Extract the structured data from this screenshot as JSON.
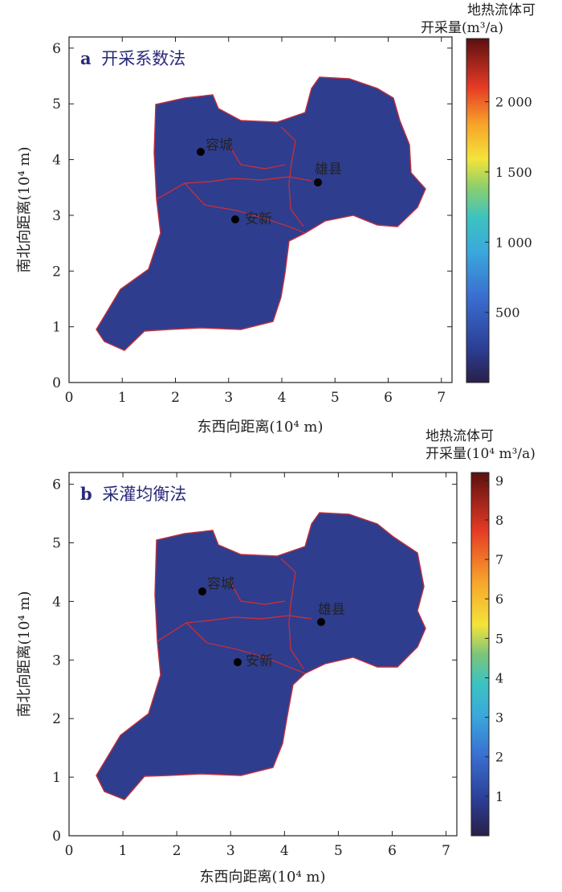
{
  "panels": [
    {
      "id": "a",
      "title_letter": "a",
      "title_text": "开采系数法",
      "colorbar_title_line1": "地热流体可",
      "colorbar_title_line2": "开采量(m³/a)",
      "colorbar_ticks": [
        "500",
        "1 000",
        "1 500",
        "2 000"
      ],
      "xlabel": "东西向距离(10⁴ m)",
      "ylabel": "南北向距离(10⁴ m)"
    },
    {
      "id": "b",
      "title_letter": "b",
      "title_text": "采灌均衡法",
      "colorbar_title_line1": "地热流体可",
      "colorbar_title_line2": "开采量(10⁴ m³/a)",
      "colorbar_ticks": [
        "1",
        "2",
        "3",
        "4",
        "5",
        "6",
        "7",
        "8",
        "9"
      ],
      "xlabel": "东西向距离(10⁴ m)",
      "ylabel": "南北向距离(10⁴ m)"
    }
  ],
  "cities": [
    {
      "name": "容城",
      "x": 2.45,
      "y": 4.1
    },
    {
      "name": "雄县",
      "x": 4.6,
      "y": 3.55
    },
    {
      "name": "安新",
      "x": 3.05,
      "y": 2.9
    }
  ],
  "chart_data": [
    {
      "type": "heatmap",
      "title": "开采系数法",
      "xlabel": "东西向距离(10⁴ m)",
      "ylabel": "南北向距离(10⁴ m)",
      "x_ticks": [
        0,
        1,
        2,
        3,
        4,
        5,
        6,
        7
      ],
      "y_ticks": [
        0,
        1,
        2,
        3,
        4,
        5,
        6
      ],
      "xlim": [
        0,
        7.2
      ],
      "ylim": [
        0,
        6.2
      ],
      "colorbar_label": "地热流体可开采量(m³/a)",
      "colorbar_ticks": [
        500,
        1000,
        1500,
        2000
      ],
      "colorbar_range": [
        0,
        2450
      ],
      "points": [
        {
          "name": "容城",
          "x": 2.45,
          "y": 4.1
        },
        {
          "name": "雄县",
          "x": 4.6,
          "y": 3.55
        },
        {
          "name": "安新",
          "x": 3.05,
          "y": 2.9
        }
      ]
    },
    {
      "type": "heatmap",
      "title": "采灌均衡法",
      "xlabel": "东西向距离(10⁴ m)",
      "ylabel": "南北向距离(10⁴ m)",
      "x_ticks": [
        0,
        1,
        2,
        3,
        4,
        5,
        6,
        7
      ],
      "y_ticks": [
        0,
        1,
        2,
        3,
        4,
        5,
        6
      ],
      "xlim": [
        0,
        7.2
      ],
      "ylim": [
        0,
        6.2
      ],
      "colorbar_label": "地热流体可开采量(10⁴ m³/a)",
      "colorbar_ticks": [
        1,
        2,
        3,
        4,
        5,
        6,
        7,
        8,
        9
      ],
      "colorbar_range": [
        0,
        9.2
      ],
      "points": [
        {
          "name": "容城",
          "x": 2.45,
          "y": 4.1
        },
        {
          "name": "雄县",
          "x": 4.6,
          "y": 3.55
        },
        {
          "name": "安新",
          "x": 3.05,
          "y": 2.9
        }
      ]
    }
  ],
  "colors": {
    "boundary": "#c0303c",
    "dark": "#2c2350",
    "deep_blue": "#26408f",
    "blue": "#3f63b8",
    "light_blue": "#4aa8d8",
    "cyan": "#36c1c8",
    "green": "#61c08b",
    "yellow": "#f2e03a",
    "orange": "#f59a2d",
    "red": "#e2392a",
    "dark_red": "#6a1414",
    "panel_title": "#2a2a7a"
  }
}
